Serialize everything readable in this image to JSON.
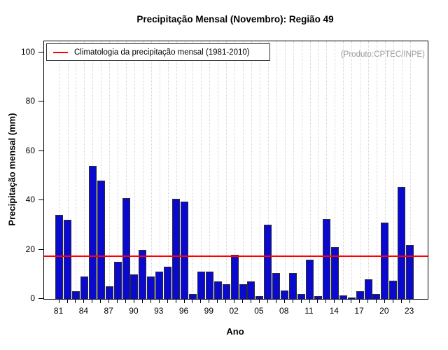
{
  "title": "Precipitação Mensal (Novembro): Região 49",
  "watermark": "(Produto:CPTEC/INPE)",
  "legend": {
    "label": "Climatologia da precipitação mensal (1981-2010)"
  },
  "axes": {
    "x_label": "Ano",
    "y_label": "Precipitação mensal (mm)"
  },
  "chart_data": {
    "type": "bar",
    "title": "Precipitação Mensal (Novembro): Região 49",
    "xlabel": "Ano",
    "ylabel": "Precipitação mensal (mm)",
    "ylim": [
      0,
      100
    ],
    "yticks": [
      0,
      20,
      40,
      60,
      80,
      100
    ],
    "x_tick_label_years": [
      "81",
      "84",
      "87",
      "90",
      "93",
      "96",
      "99",
      "02",
      "05",
      "08",
      "11",
      "14",
      "17",
      "20",
      "23"
    ],
    "grid": "vertical-dotted",
    "legend_position": "top-left",
    "bar_color": "#0a0ace",
    "bar_border_color": "#2c2c34",
    "climatology": {
      "value": 17.2,
      "color": "#ff0000",
      "label": "Climatologia da precipitação mensal (1981-2010)"
    },
    "years": [
      1981,
      1982,
      1983,
      1984,
      1985,
      1986,
      1987,
      1988,
      1989,
      1990,
      1991,
      1992,
      1993,
      1994,
      1995,
      1996,
      1997,
      1998,
      1999,
      2000,
      2001,
      2002,
      2003,
      2004,
      2005,
      2006,
      2007,
      2008,
      2009,
      2010,
      2011,
      2012,
      2013,
      2014,
      2015,
      2016,
      2017,
      2018,
      2019,
      2020,
      2021,
      2022,
      2023
    ],
    "values": [
      34,
      32,
      3,
      9,
      54,
      48,
      5,
      15,
      41,
      10,
      20,
      9,
      11,
      13,
      40.5,
      39.5,
      2,
      11,
      11,
      7,
      6,
      18,
      6,
      7,
      1,
      30,
      10.5,
      3.5,
      10.5,
      2,
      16,
      1,
      32.5,
      21,
      1.5,
      0.5,
      3,
      8,
      2,
      31,
      7.5,
      45.5,
      22
    ]
  }
}
